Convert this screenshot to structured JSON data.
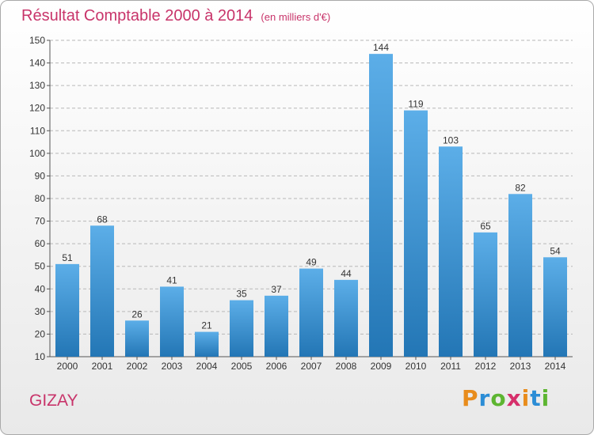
{
  "title": "Résultat Comptable 2000 à 2014",
  "subtitle": "(en milliers d'€)",
  "commune": "GIZAY",
  "logo": {
    "text": "Proxiti",
    "letter_colors": [
      "#e88c1c",
      "#2b8dd6",
      "#5db531",
      "#d62f6b",
      "#e88c1c",
      "#2b8dd6",
      "#5db531"
    ]
  },
  "colors": {
    "bar_top": "#5caee8",
    "bar_bottom": "#2376b5",
    "accent": "#c8346a",
    "grid": "#b8b8b8"
  },
  "chart_data": {
    "type": "bar",
    "title": "Résultat Comptable 2000 à 2014",
    "ylabel": "en milliers d'€",
    "xlabel": "",
    "categories": [
      "2000",
      "2001",
      "2002",
      "2003",
      "2004",
      "2005",
      "2006",
      "2007",
      "2008",
      "2009",
      "2010",
      "2011",
      "2012",
      "2013",
      "2014"
    ],
    "values": [
      51,
      68,
      26,
      41,
      21,
      35,
      37,
      49,
      44,
      144,
      119,
      103,
      65,
      82,
      54
    ],
    "ylim": [
      10,
      150
    ],
    "yticks": [
      10,
      20,
      30,
      40,
      50,
      60,
      70,
      80,
      90,
      100,
      110,
      120,
      130,
      140,
      150
    ],
    "grid": true
  }
}
